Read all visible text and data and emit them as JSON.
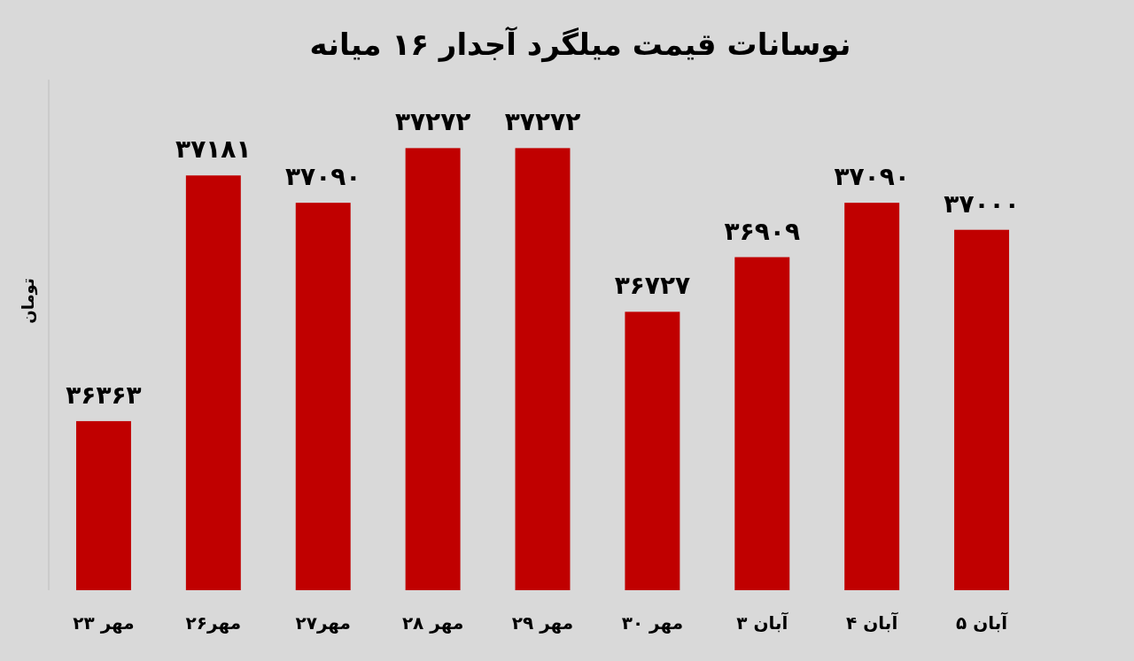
{
  "chart_data": {
    "type": "bar",
    "title": "نوسانات قیمت میلگرد آجدار ۱۶ میانه",
    "ylabel": "تومان",
    "categories": [
      "مهر ۲۳",
      "مهر۲۶",
      "مهر۲۷",
      "مهر ۲۸",
      "مهر ۲۹",
      "مهر ۳۰",
      "آبان ۳",
      "آبان ۴",
      "آبان ۵"
    ],
    "values": [
      36363,
      37181,
      37090,
      37272,
      37272,
      36727,
      36909,
      37090,
      37000
    ],
    "value_labels": [
      "۳۶۳۶۳",
      "۳۷۱۸۱",
      "۳۷۰۹۰",
      "۳۷۲۷۲",
      "۳۷۲۷۲",
      "۳۶۷۲۷",
      "۳۶۹۰۹",
      "۳۷۰۹۰",
      "۳۷۰۰۰"
    ],
    "color": "#c00000",
    "ylim": [
      35800,
      37500
    ],
    "tick_labels": "x",
    "grid": false
  }
}
